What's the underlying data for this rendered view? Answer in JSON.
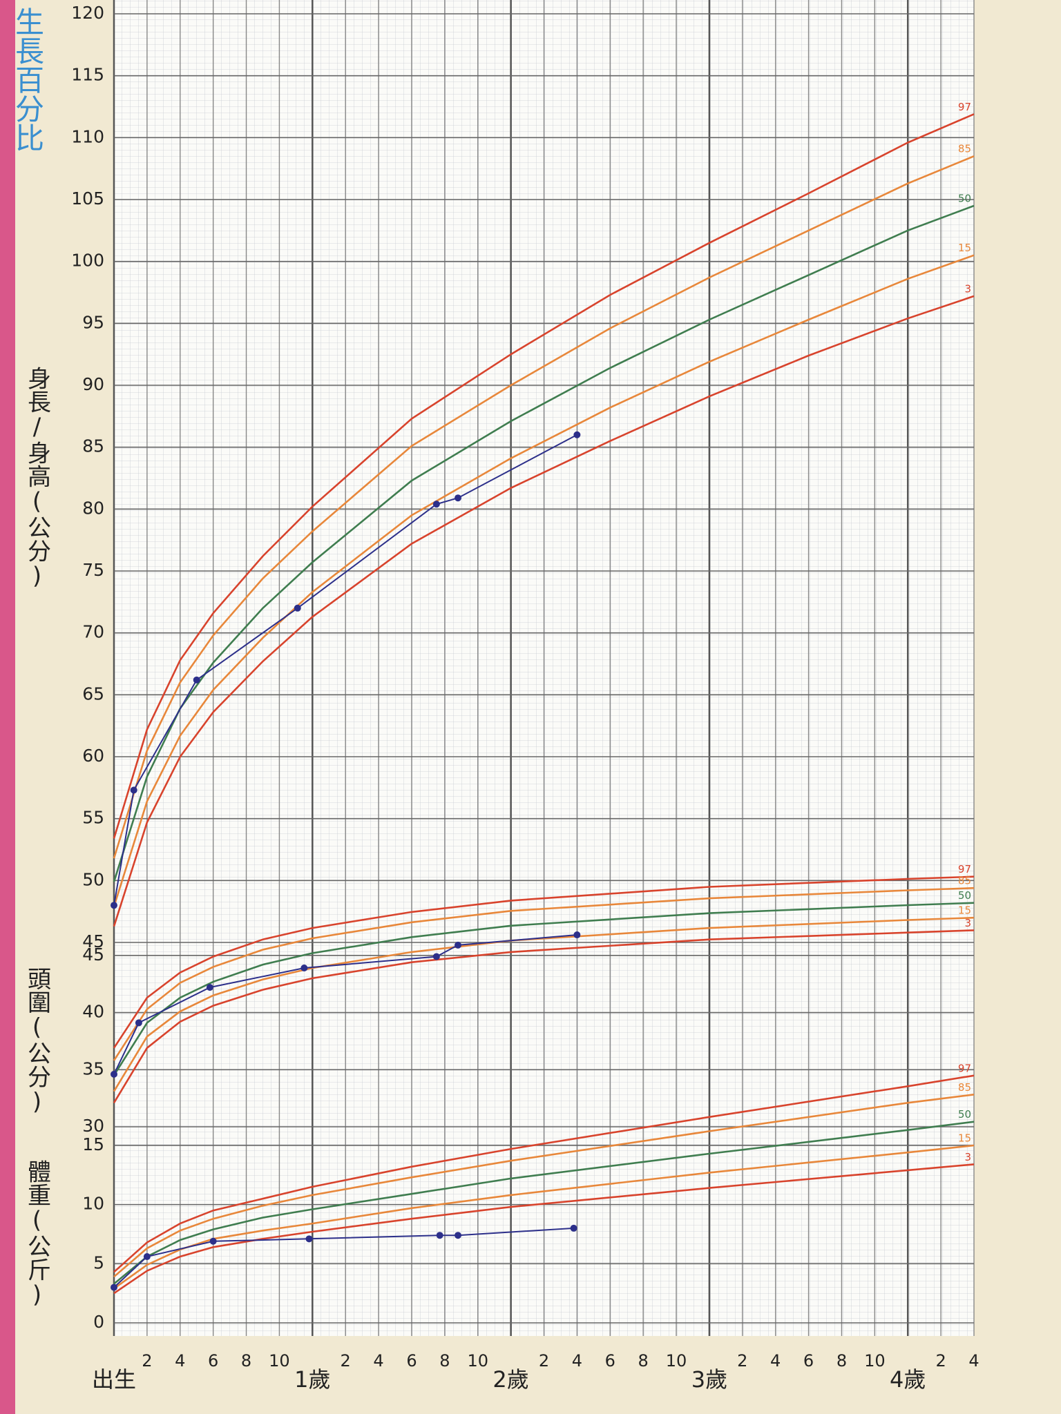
{
  "chart_data": [
    {
      "type": "line",
      "title": "生長百分比",
      "ylabel": "身長/身高(公分)",
      "xlim": [
        0,
        52
      ],
      "ylim": [
        45,
        120
      ],
      "yticks": [
        45,
        50,
        55,
        60,
        65,
        70,
        75,
        80,
        85,
        90,
        95,
        100,
        105,
        110,
        115,
        120
      ],
      "series": [
        {
          "name": "97",
          "color": "#d8432c",
          "x": [
            0,
            2,
            4,
            6,
            9,
            12,
            18,
            24,
            30,
            36,
            42,
            48,
            52
          ],
          "values": [
            53.4,
            62.2,
            67.8,
            71.6,
            76.2,
            80.2,
            87.3,
            92.5,
            97.3,
            101.5,
            105.5,
            109.6,
            111.9
          ]
        },
        {
          "name": "85",
          "color": "#e8873a",
          "x": [
            0,
            2,
            4,
            6,
            9,
            12,
            18,
            24,
            30,
            36,
            42,
            48,
            52
          ],
          "values": [
            51.8,
            60.5,
            66.0,
            69.8,
            74.4,
            78.2,
            85.1,
            90.0,
            94.6,
            98.7,
            102.5,
            106.3,
            108.5
          ]
        },
        {
          "name": "50",
          "color": "#3f7d4f",
          "x": [
            0,
            2,
            4,
            6,
            9,
            12,
            18,
            24,
            30,
            36,
            42,
            48,
            52
          ],
          "values": [
            49.9,
            58.4,
            63.9,
            67.6,
            72.0,
            75.7,
            82.3,
            87.1,
            91.4,
            95.3,
            98.9,
            102.5,
            104.5
          ]
        },
        {
          "name": "15",
          "color": "#e8873a",
          "x": [
            0,
            2,
            4,
            6,
            9,
            12,
            18,
            24,
            30,
            36,
            42,
            48,
            52
          ],
          "values": [
            47.9,
            56.4,
            61.7,
            65.4,
            69.6,
            73.3,
            79.5,
            84.1,
            88.2,
            91.9,
            95.3,
            98.6,
            100.5
          ]
        },
        {
          "name": "3",
          "color": "#d8432c",
          "x": [
            0,
            2,
            4,
            6,
            9,
            12,
            18,
            24,
            30,
            36,
            42,
            48,
            52
          ],
          "values": [
            46.3,
            54.7,
            60.0,
            63.6,
            67.7,
            71.3,
            77.2,
            81.7,
            85.5,
            89.1,
            92.4,
            95.4,
            97.2
          ]
        },
        {
          "color": "#2c2f8a",
          "markers": true,
          "x": [
            0,
            1.2,
            5,
            11.1,
            19.5,
            20.8,
            28
          ],
          "values": [
            48,
            57.3,
            66.2,
            72,
            80.4,
            80.9,
            86
          ]
        }
      ]
    },
    {
      "type": "line",
      "ylabel": "頭圍(公分)",
      "xlim": [
        0,
        52
      ],
      "ylim": [
        30,
        52
      ],
      "yticks": [
        30,
        35,
        40,
        45
      ],
      "series": [
        {
          "name": "97",
          "color": "#d8432c",
          "x": [
            0,
            2,
            4,
            6,
            9,
            12,
            18,
            24,
            36,
            48,
            52
          ],
          "values": [
            36.9,
            41.3,
            43.5,
            44.9,
            46.4,
            47.4,
            48.8,
            49.8,
            51.0,
            51.7,
            51.9
          ]
        },
        {
          "name": "85",
          "color": "#e8873a",
          "x": [
            0,
            2,
            4,
            6,
            9,
            12,
            18,
            24,
            36,
            48,
            52
          ],
          "values": [
            35.8,
            40.3,
            42.6,
            44.0,
            45.5,
            46.5,
            47.9,
            48.9,
            50.0,
            50.7,
            50.9
          ]
        },
        {
          "name": "50",
          "color": "#3f7d4f",
          "x": [
            0,
            2,
            4,
            6,
            9,
            12,
            18,
            24,
            36,
            48,
            52
          ],
          "values": [
            34.5,
            39.1,
            41.3,
            42.7,
            44.2,
            45.2,
            46.6,
            47.6,
            48.7,
            49.4,
            49.6
          ]
        },
        {
          "name": "15",
          "color": "#e8873a",
          "x": [
            0,
            2,
            4,
            6,
            9,
            12,
            18,
            24,
            36,
            48,
            52
          ],
          "values": [
            33.1,
            37.9,
            40.1,
            41.5,
            42.9,
            43.9,
            45.3,
            46.3,
            47.4,
            48.1,
            48.3
          ]
        },
        {
          "name": "3",
          "color": "#d8432c",
          "x": [
            0,
            2,
            4,
            6,
            9,
            12,
            18,
            24,
            36,
            48,
            52
          ],
          "values": [
            32.1,
            36.9,
            39.2,
            40.6,
            42.0,
            43.0,
            44.4,
            45.3,
            46.4,
            47.0,
            47.2
          ]
        },
        {
          "color": "#2c2f8a",
          "markers": true,
          "x": [
            0,
            1.5,
            5.8,
            11.5,
            19.5,
            20.8,
            28
          ],
          "values": [
            34.6,
            39.1,
            42.2,
            43.9,
            44.9,
            45.9,
            46.8
          ]
        }
      ]
    },
    {
      "type": "line",
      "ylabel": "體重(公斤)",
      "xlim": [
        0,
        52
      ],
      "ylim": [
        0,
        22
      ],
      "yticks": [
        0,
        5,
        10,
        15
      ],
      "xticks": [
        {
          "value": 0,
          "label": "出生"
        },
        2,
        4,
        6,
        8,
        10,
        {
          "value": 12,
          "label": "1歲"
        },
        {
          "value": 14,
          "label": "2"
        },
        {
          "value": 16,
          "label": "4"
        },
        {
          "value": 18,
          "label": "6"
        },
        {
          "value": 20,
          "label": "8"
        },
        {
          "value": 22,
          "label": "10"
        },
        {
          "value": 24,
          "label": "2歲"
        },
        {
          "value": 26,
          "label": "2"
        },
        {
          "value": 28,
          "label": "4"
        },
        {
          "value": 30,
          "label": "6"
        },
        {
          "value": 32,
          "label": "8"
        },
        {
          "value": 34,
          "label": "10"
        },
        {
          "value": 36,
          "label": "3歲"
        },
        {
          "value": 38,
          "label": "2"
        },
        {
          "value": 40,
          "label": "4"
        },
        {
          "value": 42,
          "label": "6"
        },
        {
          "value": 44,
          "label": "8"
        },
        {
          "value": 46,
          "label": "10"
        },
        {
          "value": 48,
          "label": "4歲"
        },
        {
          "value": 50,
          "label": "2"
        },
        {
          "value": 52,
          "label": "4"
        }
      ],
      "series": [
        {
          "name": "97",
          "color": "#d8432c",
          "x": [
            0,
            2,
            4,
            6,
            9,
            12,
            18,
            24,
            36,
            48,
            52
          ],
          "values": [
            4.3,
            6.8,
            8.4,
            9.5,
            10.5,
            11.5,
            13.2,
            14.7,
            17.4,
            20.0,
            20.9
          ]
        },
        {
          "name": "85",
          "color": "#e8873a",
          "x": [
            0,
            2,
            4,
            6,
            9,
            12,
            18,
            24,
            36,
            48,
            52
          ],
          "values": [
            3.9,
            6.3,
            7.8,
            8.8,
            9.9,
            10.8,
            12.3,
            13.7,
            16.2,
            18.6,
            19.3
          ]
        },
        {
          "name": "50",
          "color": "#3f7d4f",
          "x": [
            0,
            2,
            4,
            6,
            9,
            12,
            18,
            24,
            36,
            48,
            52
          ],
          "values": [
            3.3,
            5.6,
            7.0,
            7.9,
            8.9,
            9.6,
            10.9,
            12.2,
            14.3,
            16.3,
            17.0
          ]
        },
        {
          "name": "15",
          "color": "#e8873a",
          "x": [
            0,
            2,
            4,
            6,
            9,
            12,
            18,
            24,
            36,
            48,
            52
          ],
          "values": [
            2.9,
            4.9,
            6.2,
            7.1,
            7.8,
            8.4,
            9.7,
            10.8,
            12.7,
            14.4,
            15.0
          ]
        },
        {
          "name": "3",
          "color": "#d8432c",
          "x": [
            0,
            2,
            4,
            6,
            9,
            12,
            18,
            24,
            36,
            48,
            52
          ],
          "values": [
            2.5,
            4.4,
            5.6,
            6.4,
            7.1,
            7.7,
            8.8,
            9.8,
            11.4,
            12.9,
            13.4
          ]
        },
        {
          "color": "#2c2f8a",
          "markers": true,
          "x": [
            0,
            2,
            6,
            11.8,
            19.7,
            20.8,
            27.8
          ],
          "values": [
            3.0,
            5.6,
            6.9,
            7.1,
            7.4,
            7.4,
            8.0
          ]
        }
      ]
    }
  ]
}
